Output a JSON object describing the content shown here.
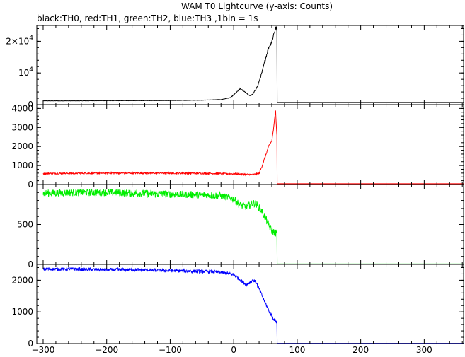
{
  "chart_data": {
    "type": "line",
    "title": "WAM T0 Lightcurve (y-axis: Counts)",
    "subtitle": "black:TH0, red:TH1, green:TH2, blue:TH3 ,1bin = 1s",
    "xlabel": "",
    "x_range": [
      -310,
      362
    ],
    "x_ticks": [
      "−300",
      "−200",
      "−100",
      "0",
      "100",
      "200",
      "300"
    ],
    "x_tick_values": [
      -300,
      -200,
      -100,
      0,
      100,
      200,
      300
    ],
    "grid": false,
    "panels": [
      {
        "name": "TH0",
        "color": "#000000",
        "ylim": [
          0,
          25000
        ],
        "y_tick_values": [
          0,
          10000,
          20000
        ],
        "y_tick_labels": [
          {
            "mantissa": "0",
            "exp": ""
          },
          {
            "mantissa": "10",
            "exp": "4"
          },
          {
            "mantissa": "2×10",
            "exp": "4"
          }
        ],
        "points": [
          [
            -300,
            1200
          ],
          [
            -250,
            1200
          ],
          [
            -200,
            1250
          ],
          [
            -150,
            1250
          ],
          [
            -100,
            1300
          ],
          [
            -50,
            1400
          ],
          [
            -20,
            1600
          ],
          [
            -5,
            2200
          ],
          [
            5,
            4000
          ],
          [
            10,
            5000
          ],
          [
            18,
            4000
          ],
          [
            25,
            2800
          ],
          [
            30,
            3200
          ],
          [
            38,
            6000
          ],
          [
            45,
            10500
          ],
          [
            50,
            14500
          ],
          [
            55,
            18000
          ],
          [
            60,
            20000
          ],
          [
            64,
            23000
          ],
          [
            67,
            24500
          ],
          [
            68,
            23000
          ],
          [
            68.5,
            700
          ],
          [
            100,
            700
          ],
          [
            200,
            700
          ],
          [
            300,
            700
          ],
          [
            362,
            700
          ]
        ],
        "noise": 100
      },
      {
        "name": "TH1",
        "color": "#ff0000",
        "ylim": [
          0,
          4200
        ],
        "y_tick_values": [
          0,
          1000,
          2000,
          3000,
          4000
        ],
        "y_tick_labels": [
          {
            "mantissa": "0",
            "exp": ""
          },
          {
            "mantissa": "1000",
            "exp": ""
          },
          {
            "mantissa": "2000",
            "exp": ""
          },
          {
            "mantissa": "3000",
            "exp": ""
          },
          {
            "mantissa": "4000",
            "exp": ""
          }
        ],
        "points": [
          [
            -300,
            580
          ],
          [
            -200,
            600
          ],
          [
            -100,
            600
          ],
          [
            -50,
            590
          ],
          [
            0,
            560
          ],
          [
            30,
            520
          ],
          [
            40,
            580
          ],
          [
            45,
            1000
          ],
          [
            50,
            1500
          ],
          [
            55,
            2000
          ],
          [
            60,
            2300
          ],
          [
            63,
            3000
          ],
          [
            66,
            3900
          ],
          [
            67,
            3200
          ],
          [
            68,
            2600
          ],
          [
            68.5,
            40
          ],
          [
            100,
            40
          ],
          [
            200,
            40
          ],
          [
            300,
            40
          ],
          [
            362,
            40
          ]
        ],
        "noise": 40
      },
      {
        "name": "TH2",
        "color": "#00ee00",
        "ylim": [
          0,
          1000
        ],
        "y_tick_values": [
          0,
          500
        ],
        "y_tick_labels": [
          {
            "mantissa": "0",
            "exp": ""
          },
          {
            "mantissa": "500",
            "exp": ""
          }
        ],
        "points": [
          [
            -300,
            890
          ],
          [
            -250,
            900
          ],
          [
            -200,
            900
          ],
          [
            -150,
            890
          ],
          [
            -100,
            880
          ],
          [
            -50,
            870
          ],
          [
            -20,
            860
          ],
          [
            0,
            820
          ],
          [
            10,
            740
          ],
          [
            20,
            720
          ],
          [
            30,
            770
          ],
          [
            35,
            760
          ],
          [
            45,
            660
          ],
          [
            55,
            500
          ],
          [
            60,
            420
          ],
          [
            67,
            390
          ],
          [
            68,
            400
          ],
          [
            68.5,
            5
          ],
          [
            100,
            5
          ],
          [
            200,
            5
          ],
          [
            300,
            5
          ],
          [
            362,
            5
          ]
        ],
        "noise": 45
      },
      {
        "name": "TH3",
        "color": "#0000ff",
        "ylim": [
          0,
          2500
        ],
        "y_tick_values": [
          0,
          1000,
          2000
        ],
        "y_tick_labels": [
          {
            "mantissa": "0",
            "exp": ""
          },
          {
            "mantissa": "1000",
            "exp": ""
          },
          {
            "mantissa": "2000",
            "exp": ""
          }
        ],
        "points": [
          [
            -300,
            2350
          ],
          [
            -250,
            2350
          ],
          [
            -200,
            2330
          ],
          [
            -150,
            2330
          ],
          [
            -100,
            2300
          ],
          [
            -50,
            2280
          ],
          [
            -20,
            2250
          ],
          [
            0,
            2180
          ],
          [
            10,
            2020
          ],
          [
            20,
            1850
          ],
          [
            30,
            2000
          ],
          [
            35,
            1950
          ],
          [
            45,
            1500
          ],
          [
            55,
            1050
          ],
          [
            62,
            800
          ],
          [
            67,
            700
          ],
          [
            68,
            700
          ],
          [
            68.5,
            10
          ],
          [
            100,
            10
          ],
          [
            200,
            10
          ],
          [
            300,
            10
          ],
          [
            362,
            10
          ]
        ],
        "noise": 50
      }
    ]
  }
}
